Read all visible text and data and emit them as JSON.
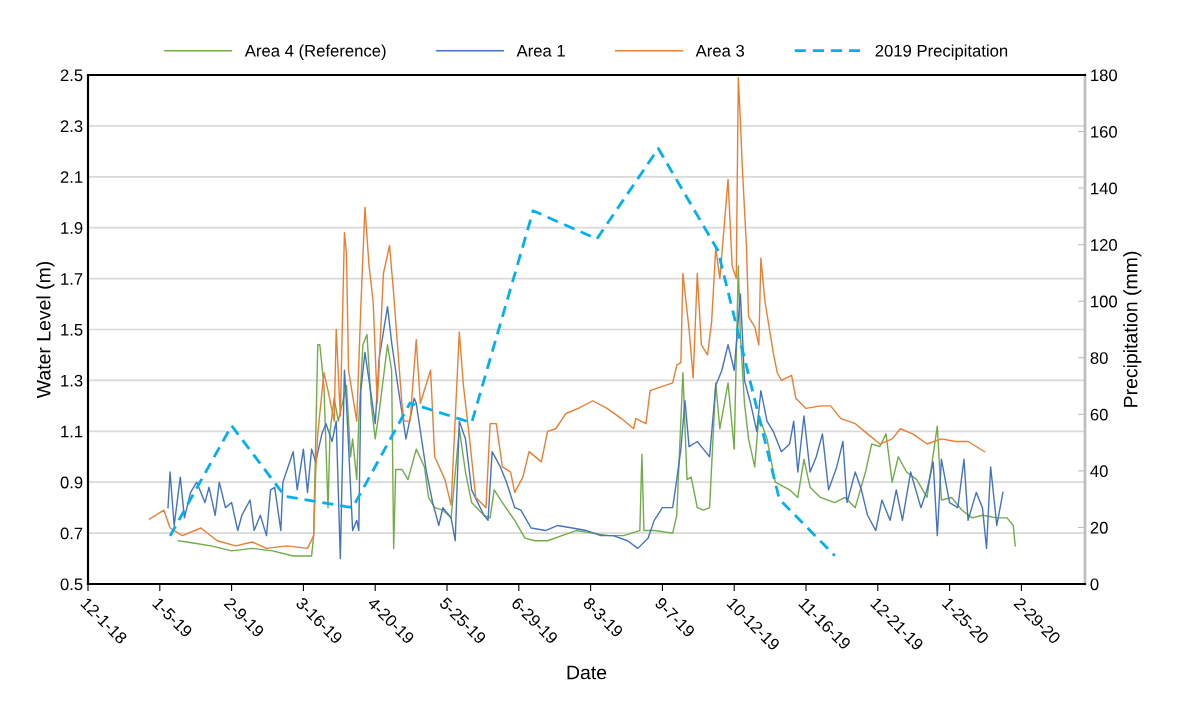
{
  "chart_data": {
    "type": "line",
    "xlabel": "Date",
    "ylabel": "Water Level (m)",
    "y2label": "Precipitation (mm)",
    "xlim": [
      "2018-12-01",
      "2020-03-31"
    ],
    "xticks": [
      {
        "value": "2018-12-01",
        "label": "12-1-18"
      },
      {
        "value": "2019-01-05",
        "label": "1-5-19"
      },
      {
        "value": "2019-02-09",
        "label": "2-9-19"
      },
      {
        "value": "2019-03-16",
        "label": "3-16-19"
      },
      {
        "value": "2019-04-20",
        "label": "4-20-19"
      },
      {
        "value": "2019-05-25",
        "label": "5-25-19"
      },
      {
        "value": "2019-06-29",
        "label": "6-29-19"
      },
      {
        "value": "2019-08-03",
        "label": "8-3-19"
      },
      {
        "value": "2019-09-07",
        "label": "9-7-19"
      },
      {
        "value": "2019-10-12",
        "label": "10-12-19"
      },
      {
        "value": "2019-11-16",
        "label": "11-16-19"
      },
      {
        "value": "2019-12-21",
        "label": "12-21-19"
      },
      {
        "value": "2020-01-25",
        "label": "1-25-20"
      },
      {
        "value": "2020-02-29",
        "label": "2-29-20"
      }
    ],
    "ylim": [
      0.5,
      2.5
    ],
    "yticks": [
      0.5,
      0.7,
      0.9,
      1.1,
      1.3,
      1.5,
      1.7,
      1.9,
      2.1,
      2.3,
      2.5
    ],
    "y2lim": [
      0,
      180
    ],
    "y2ticks": [
      0,
      20,
      40,
      60,
      80,
      100,
      120,
      140,
      160,
      180
    ],
    "grid": "y",
    "legend": "top",
    "marker": "none",
    "series": [
      {
        "name": "Area 4 (Reference)",
        "color": "#70ad47",
        "line_style": "solid",
        "x": [
          "2019-01-14",
          "2019-01-22",
          "2019-01-30",
          "2019-02-09",
          "2019-02-19",
          "2019-03-01",
          "2019-03-11",
          "2019-03-20",
          "2019-03-21",
          "2019-03-22",
          "2019-03-23",
          "2019-03-24",
          "2019-03-26",
          "2019-03-28",
          "2019-03-29",
          "2019-03-31",
          "2019-04-02",
          "2019-04-06",
          "2019-04-08",
          "2019-04-09",
          "2019-04-11",
          "2019-04-12",
          "2019-04-14",
          "2019-04-16",
          "2019-04-18",
          "2019-04-20",
          "2019-04-22",
          "2019-04-26",
          "2019-04-28",
          "2019-04-29",
          "2019-04-30",
          "2019-05-03",
          "2019-05-06",
          "2019-05-10",
          "2019-05-14",
          "2019-05-16",
          "2019-05-19",
          "2019-05-23",
          "2019-05-27",
          "2019-05-31",
          "2019-06-03",
          "2019-06-06",
          "2019-06-12",
          "2019-06-15",
          "2019-06-17",
          "2019-06-21",
          "2019-06-27",
          "2019-07-02",
          "2019-07-07",
          "2019-07-13",
          "2019-07-20",
          "2019-07-27",
          "2019-08-04",
          "2019-08-12",
          "2019-08-19",
          "2019-08-27",
          "2019-08-28",
          "2019-08-29",
          "2019-09-03",
          "2019-09-12",
          "2019-09-14",
          "2019-09-17",
          "2019-09-19",
          "2019-09-21",
          "2019-09-24",
          "2019-09-27",
          "2019-09-30",
          "2019-10-03",
          "2019-10-05",
          "2019-10-09",
          "2019-10-12",
          "2019-10-14",
          "2019-10-15",
          "2019-10-17",
          "2019-10-19",
          "2019-10-22",
          "2019-10-24",
          "2019-10-28",
          "2019-11-01",
          "2019-11-08",
          "2019-11-12",
          "2019-11-15",
          "2019-11-18",
          "2019-11-23",
          "2019-11-30",
          "2019-12-05",
          "2019-12-10",
          "2019-12-15",
          "2019-12-18",
          "2019-12-22",
          "2019-12-25",
          "2019-12-28",
          "2019-12-31",
          "2020-01-04",
          "2020-01-09",
          "2020-01-14",
          "2020-01-19",
          "2020-01-21",
          "2020-01-26",
          "2020-01-31",
          "2020-02-05",
          "2020-02-10",
          "2020-02-17",
          "2020-02-22",
          "2020-02-25",
          "2020-02-26"
        ],
        "values": [
          0.67,
          0.66,
          0.65,
          0.63,
          0.64,
          0.63,
          0.61,
          0.61,
          0.69,
          1.07,
          1.44,
          1.44,
          1.28,
          0.8,
          1.1,
          1.23,
          1.14,
          1.28,
          1.0,
          1.07,
          0.91,
          1.14,
          1.44,
          1.48,
          1.21,
          1.07,
          1.18,
          1.44,
          1.34,
          0.64,
          0.95,
          0.95,
          0.91,
          1.03,
          0.96,
          0.84,
          0.8,
          0.79,
          0.76,
          1.11,
          0.94,
          0.82,
          0.77,
          0.76,
          0.87,
          0.82,
          0.75,
          0.68,
          0.67,
          0.67,
          0.69,
          0.71,
          0.7,
          0.69,
          0.69,
          0.71,
          1.01,
          0.71,
          0.71,
          0.7,
          0.77,
          1.33,
          0.91,
          0.92,
          0.8,
          0.79,
          0.8,
          1.29,
          1.11,
          1.29,
          1.03,
          1.75,
          1.48,
          1.21,
          1.07,
          0.96,
          1.16,
          1.07,
          0.9,
          0.87,
          0.84,
          0.99,
          0.88,
          0.84,
          0.82,
          0.84,
          0.8,
          0.94,
          1.05,
          1.04,
          1.09,
          0.9,
          1.0,
          0.94,
          0.91,
          0.84,
          1.12,
          0.83,
          0.84,
          0.79,
          0.76,
          0.77,
          0.76,
          0.76,
          0.73,
          0.65
        ]
      },
      {
        "name": "Area 1",
        "color": "#4472c4",
        "line_style": "solid",
        "x": [
          "2019-01-09",
          "2019-01-10",
          "2019-01-12",
          "2019-01-15",
          "2019-01-17",
          "2019-01-20",
          "2019-01-23",
          "2019-01-27",
          "2019-01-29",
          "2019-02-01",
          "2019-02-03",
          "2019-02-06",
          "2019-02-09",
          "2019-02-12",
          "2019-02-14",
          "2019-02-18",
          "2019-02-20",
          "2019-02-23",
          "2019-02-26",
          "2019-02-28",
          "2019-03-02",
          "2019-03-05",
          "2019-03-06",
          "2019-03-11",
          "2019-03-13",
          "2019-03-16",
          "2019-03-18",
          "2019-03-20",
          "2019-03-22",
          "2019-03-25",
          "2019-03-27",
          "2019-03-30",
          "2019-04-01",
          "2019-04-03",
          "2019-04-05",
          "2019-04-06",
          "2019-04-09",
          "2019-04-11",
          "2019-04-12",
          "2019-04-13",
          "2019-04-15",
          "2019-04-17",
          "2019-04-20",
          "2019-04-22",
          "2019-04-26",
          "2019-04-28",
          "2019-05-01",
          "2019-05-05",
          "2019-05-09",
          "2019-05-10",
          "2019-05-15",
          "2019-05-18",
          "2019-05-21",
          "2019-05-23",
          "2019-05-27",
          "2019-05-29",
          "2019-05-31",
          "2019-06-03",
          "2019-06-06",
          "2019-06-12",
          "2019-06-14",
          "2019-06-16",
          "2019-06-20",
          "2019-06-23",
          "2019-06-27",
          "2019-06-30",
          "2019-07-05",
          "2019-07-12",
          "2019-07-18",
          "2019-07-25",
          "2019-08-01",
          "2019-08-08",
          "2019-08-14",
          "2019-08-21",
          "2019-08-26",
          "2019-08-31",
          "2019-09-03",
          "2019-09-07",
          "2019-09-12",
          "2019-09-14",
          "2019-09-16",
          "2019-09-18",
          "2019-09-20",
          "2019-09-24",
          "2019-09-27",
          "2019-09-30",
          "2019-10-03",
          "2019-10-06",
          "2019-10-09",
          "2019-10-12",
          "2019-10-15",
          "2019-10-16",
          "2019-10-17",
          "2019-10-20",
          "2019-10-23",
          "2019-10-25",
          "2019-10-28",
          "2019-10-31",
          "2019-11-04",
          "2019-11-08",
          "2019-11-10",
          "2019-11-12",
          "2019-11-15",
          "2019-11-18",
          "2019-11-21",
          "2019-11-24",
          "2019-11-27",
          "2019-12-01",
          "2019-12-04",
          "2019-12-06",
          "2019-12-10",
          "2019-12-13",
          "2019-12-16",
          "2019-12-20",
          "2019-12-23",
          "2019-12-27",
          "2019-12-30",
          "2020-01-02",
          "2020-01-06",
          "2020-01-11",
          "2020-01-14",
          "2020-01-17",
          "2020-01-19",
          "2020-01-21",
          "2020-01-25",
          "2020-01-29",
          "2020-02-01",
          "2020-02-03",
          "2020-02-07",
          "2020-02-10",
          "2020-02-12",
          "2020-02-14",
          "2020-02-17",
          "2020-02-20"
        ],
        "values": [
          0.8,
          0.94,
          0.73,
          0.92,
          0.76,
          0.86,
          0.9,
          0.82,
          0.88,
          0.77,
          0.9,
          0.8,
          0.82,
          0.71,
          0.77,
          0.83,
          0.71,
          0.77,
          0.69,
          0.87,
          0.88,
          0.71,
          0.9,
          1.02,
          0.87,
          1.03,
          0.86,
          1.03,
          0.98,
          1.09,
          1.13,
          1.06,
          1.14,
          0.6,
          1.34,
          1.21,
          0.71,
          0.75,
          0.71,
          1.26,
          1.41,
          1.3,
          1.13,
          1.39,
          1.59,
          1.45,
          1.28,
          1.07,
          1.23,
          1.21,
          0.94,
          0.82,
          0.73,
          0.8,
          0.76,
          0.67,
          1.14,
          1.07,
          0.87,
          0.77,
          0.75,
          1.02,
          0.96,
          0.9,
          0.8,
          0.79,
          0.72,
          0.71,
          0.73,
          0.72,
          0.71,
          0.69,
          0.69,
          0.67,
          0.64,
          0.68,
          0.75,
          0.8,
          0.8,
          0.91,
          1.03,
          1.22,
          1.04,
          1.06,
          1.03,
          1.0,
          1.28,
          1.34,
          1.44,
          1.34,
          1.64,
          1.48,
          1.3,
          1.21,
          1.1,
          1.26,
          1.14,
          1.1,
          1.02,
          1.05,
          1.14,
          0.94,
          1.16,
          0.94,
          1.0,
          1.09,
          0.87,
          0.96,
          1.06,
          0.82,
          0.94,
          0.87,
          0.77,
          0.71,
          0.83,
          0.75,
          0.87,
          0.75,
          0.94,
          0.8,
          0.87,
          0.98,
          0.69,
          0.99,
          0.82,
          0.8,
          0.99,
          0.75,
          0.86,
          0.8,
          0.64,
          0.96,
          0.73,
          0.86
        ]
      },
      {
        "name": "Area 3",
        "color": "#ed7d31",
        "line_style": "solid",
        "x": [
          "2018-12-31",
          "2019-01-07",
          "2019-01-10",
          "2019-01-16",
          "2019-01-25",
          "2019-02-02",
          "2019-02-11",
          "2019-02-19",
          "2019-02-26",
          "2019-03-08",
          "2019-03-18",
          "2019-03-21",
          "2019-03-22",
          "2019-03-23",
          "2019-03-26",
          "2019-03-28",
          "2019-03-31",
          "2019-04-01",
          "2019-04-03",
          "2019-04-05",
          "2019-04-06",
          "2019-04-07",
          "2019-04-11",
          "2019-04-13",
          "2019-04-15",
          "2019-04-17",
          "2019-04-19",
          "2019-04-21",
          "2019-04-24",
          "2019-04-27",
          "2019-04-29",
          "2019-05-03",
          "2019-05-04",
          "2019-05-07",
          "2019-05-10",
          "2019-05-12",
          "2019-05-17",
          "2019-05-19",
          "2019-05-24",
          "2019-05-27",
          "2019-05-31",
          "2019-06-02",
          "2019-06-05",
          "2019-06-08",
          "2019-06-13",
          "2019-06-15",
          "2019-06-18",
          "2019-06-21",
          "2019-06-25",
          "2019-06-27",
          "2019-07-01",
          "2019-07-04",
          "2019-07-10",
          "2019-07-13",
          "2019-07-17",
          "2019-07-22",
          "2019-07-28",
          "2019-08-04",
          "2019-08-11",
          "2019-08-18",
          "2019-08-24",
          "2019-08-25",
          "2019-08-30",
          "2019-09-01",
          "2019-09-12",
          "2019-09-14",
          "2019-09-16",
          "2019-09-17",
          "2019-09-20",
          "2019-09-22",
          "2019-09-24",
          "2019-09-26",
          "2019-09-29",
          "2019-10-01",
          "2019-10-03",
          "2019-10-05",
          "2019-10-09",
          "2019-10-11",
          "2019-10-13",
          "2019-10-14",
          "2019-10-15",
          "2019-10-16",
          "2019-10-18",
          "2019-10-19",
          "2019-10-22",
          "2019-10-24",
          "2019-10-25",
          "2019-10-27",
          "2019-10-31",
          "2019-11-02",
          "2019-11-04",
          "2019-11-09",
          "2019-11-11",
          "2019-11-16",
          "2019-11-23",
          "2019-11-28",
          "2019-12-03",
          "2019-12-10",
          "2019-12-16",
          "2019-12-22",
          "2019-12-28",
          "2020-01-01",
          "2020-01-07",
          "2020-01-14",
          "2020-01-21",
          "2020-01-28",
          "2020-02-03",
          "2020-02-11"
        ],
        "values": [
          0.755,
          0.79,
          0.72,
          0.69,
          0.72,
          0.67,
          0.65,
          0.665,
          0.64,
          0.65,
          0.64,
          0.69,
          0.94,
          1.09,
          1.33,
          1.26,
          1.14,
          1.5,
          1.16,
          1.88,
          1.8,
          1.34,
          1.14,
          1.59,
          1.98,
          1.75,
          1.61,
          1.21,
          1.72,
          1.83,
          1.64,
          1.21,
          1.14,
          1.14,
          1.46,
          1.21,
          1.34,
          1.0,
          0.91,
          0.81,
          1.49,
          1.28,
          1.07,
          0.84,
          0.8,
          1.13,
          1.13,
          0.96,
          0.94,
          0.86,
          0.92,
          1.02,
          0.98,
          1.1,
          1.11,
          1.17,
          1.19,
          1.22,
          1.19,
          1.15,
          1.11,
          1.15,
          1.13,
          1.26,
          1.29,
          1.36,
          1.37,
          1.72,
          1.5,
          1.31,
          1.72,
          1.44,
          1.4,
          1.53,
          1.82,
          1.7,
          2.09,
          1.75,
          1.7,
          2.49,
          2.32,
          2.13,
          1.82,
          1.55,
          1.51,
          1.44,
          1.78,
          1.61,
          1.41,
          1.33,
          1.3,
          1.32,
          1.23,
          1.19,
          1.2,
          1.2,
          1.15,
          1.13,
          1.09,
          1.05,
          1.07,
          1.11,
          1.09,
          1.05,
          1.07,
          1.06,
          1.06,
          1.02
        ]
      },
      {
        "name": "2019 Precipitation",
        "color": "#00b0f0",
        "line_style": "dashed",
        "axis": "y2",
        "x": [
          "2019-01-10",
          "2019-02-09",
          "2019-03-07",
          "2019-04-09",
          "2019-05-07",
          "2019-06-06",
          "2019-07-06",
          "2019-08-06",
          "2019-09-05",
          "2019-10-04",
          "2019-11-03",
          "2019-11-30"
        ],
        "values": [
          17,
          56,
          31,
          27,
          64,
          57,
          132,
          122,
          154,
          118,
          30,
          10
        ]
      }
    ]
  }
}
